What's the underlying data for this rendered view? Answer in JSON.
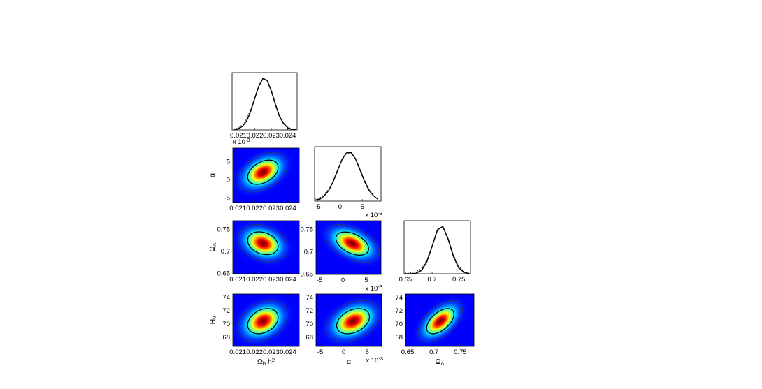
{
  "chart_data": [
    {
      "type": "line",
      "xlim": [
        0.02062,
        0.02457
      ],
      "ylim": [
        0,
        1.1
      ],
      "xticks": [
        0.021,
        0.022,
        0.023,
        0.024
      ],
      "x": [
        0.02075,
        0.021,
        0.02125,
        0.0215,
        0.02175,
        0.022,
        0.02225,
        0.0225,
        0.02275,
        0.023,
        0.02325,
        0.0235,
        0.02375,
        0.024,
        0.02425,
        0.0245
      ],
      "series": [
        {
          "color": "#000000",
          "style": "solid",
          "values": [
            0.01,
            0.02,
            0.07,
            0.17,
            0.36,
            0.61,
            0.85,
            0.99,
            0.95,
            0.75,
            0.49,
            0.26,
            0.12,
            0.04,
            0.01,
            0.0
          ]
        },
        {
          "color": "#000000",
          "style": "dotted",
          "values": [
            0.02,
            0.04,
            0.1,
            0.21,
            0.39,
            0.62,
            0.84,
            0.97,
            0.96,
            0.78,
            0.52,
            0.29,
            0.13,
            0.05,
            0.02,
            0.01
          ]
        }
      ]
    },
    {
      "type": "line",
      "xlim": [
        -5.7,
        9.2
      ],
      "ylim": [
        0,
        1.1
      ],
      "xticks": [
        -5,
        0,
        5
      ],
      "x_exponent_label": {
        "base": "x 10",
        "sup": "-3"
      },
      "x": [
        -5.5,
        -4.5,
        -3.5,
        -2.5,
        -1.5,
        -0.5,
        0.5,
        1.5,
        2.5,
        3.5,
        4.5,
        5.5,
        6.5,
        7.5,
        8.5
      ],
      "series": [
        {
          "color": "#000000",
          "style": "solid",
          "values": [
            0.02,
            0.04,
            0.11,
            0.22,
            0.4,
            0.63,
            0.85,
            0.98,
            0.98,
            0.85,
            0.63,
            0.4,
            0.22,
            0.11,
            0.04
          ]
        },
        {
          "color": "#000000",
          "style": "dotted",
          "values": [
            0.04,
            0.07,
            0.14,
            0.25,
            0.42,
            0.64,
            0.84,
            0.96,
            0.97,
            0.86,
            0.66,
            0.43,
            0.24,
            0.11,
            0.04
          ]
        }
      ]
    },
    {
      "type": "line",
      "xlim": [
        0.6475,
        0.772
      ],
      "ylim": [
        0,
        1.1
      ],
      "xticks": [
        0.65,
        0.7,
        0.75
      ],
      "x": [
        0.65,
        0.66,
        0.67,
        0.68,
        0.69,
        0.7,
        0.71,
        0.72,
        0.73,
        0.74,
        0.75,
        0.76,
        0.77
      ],
      "series": [
        {
          "color": "#000000",
          "style": "solid",
          "values": [
            0.0,
            0.0,
            0.01,
            0.07,
            0.24,
            0.57,
            0.91,
            0.98,
            0.72,
            0.36,
            0.12,
            0.03,
            0.0
          ]
        },
        {
          "color": "#000000",
          "style": "dotted",
          "values": [
            0.01,
            0.02,
            0.04,
            0.11,
            0.28,
            0.58,
            0.89,
            0.98,
            0.74,
            0.39,
            0.15,
            0.05,
            0.01
          ]
        }
      ]
    },
    {
      "type": "contour",
      "xlim": [
        0.0207,
        0.02467
      ],
      "ylim": [
        -6.35,
        8.65
      ],
      "xticks": [
        0.021,
        0.022,
        0.023,
        0.024
      ],
      "yticks": [
        -5,
        0,
        5
      ],
      "ylabel": {
        "base": "α"
      },
      "y_exponent_label": {
        "base": "x 10",
        "sup": "-3"
      },
      "mean": [
        0.0225,
        2
      ],
      "std": [
        0.0006,
        2.2
      ],
      "corr": 0.4,
      "contour_levels": [
        1.52,
        2.49
      ],
      "contour_colors": [
        "#000000",
        "#3a3a3a"
      ]
    },
    {
      "type": "contour",
      "xlim": [
        0.0207,
        0.02467
      ],
      "ylim": [
        0.649,
        0.769
      ],
      "xticks": [
        0.021,
        0.022,
        0.023,
        0.024
      ],
      "yticks": [
        0.65,
        0.7,
        0.75
      ],
      "ylabel": {
        "base": "Ω",
        "sub": "Λ"
      },
      "mean": [
        0.0225,
        0.718
      ],
      "std": [
        0.0006,
        0.017
      ],
      "corr": -0.25,
      "contour_levels": [
        1.52,
        2.49
      ],
      "contour_colors": [
        "#000000",
        "#3a3a3a"
      ]
    },
    {
      "type": "contour",
      "xlim": [
        -5.75,
        8.13
      ],
      "ylim": [
        0.649,
        0.769
      ],
      "xticks": [
        -5,
        0,
        5
      ],
      "yticks": [
        0.65,
        0.7,
        0.75
      ],
      "x_exponent_label": {
        "base": "x 10",
        "sup": "-3"
      },
      "mean": [
        2,
        0.718
      ],
      "std": [
        2.3,
        0.017
      ],
      "corr": -0.45,
      "contour_levels": [
        1.52,
        2.49
      ],
      "contour_colors": [
        "#000000",
        "#3a3a3a"
      ]
    },
    {
      "type": "contour",
      "xlim": [
        0.0207,
        0.02467
      ],
      "ylim": [
        66.6,
        74.5
      ],
      "xticks": [
        0.021,
        0.022,
        0.023,
        0.024
      ],
      "yticks": [
        68,
        70,
        72,
        74
      ],
      "xlabel": {
        "base": "Ω",
        "sub": "b",
        "tail": " h",
        "sup": "2"
      },
      "ylabel": {
        "base": "H",
        "sub": "0"
      },
      "mean": [
        0.0225,
        70.4
      ],
      "std": [
        0.0006,
        1.25
      ],
      "corr": 0.3,
      "contour_levels": [
        1.52,
        2.49
      ],
      "contour_colors": [
        "#000000",
        "#3a3a3a"
      ]
    },
    {
      "type": "contour",
      "xlim": [
        -5.9,
        8.1
      ],
      "ylim": [
        66.6,
        74.5
      ],
      "xticks": [
        -5,
        0,
        5
      ],
      "yticks": [
        68,
        70,
        72,
        74
      ],
      "xlabel": {
        "base": "α"
      },
      "x_exponent_label": {
        "base": "x 10",
        "sup": "-3"
      },
      "mean": [
        2,
        70.4
      ],
      "std": [
        2.3,
        1.25
      ],
      "corr": 0.35,
      "contour_levels": [
        1.52,
        2.49
      ],
      "contour_colors": [
        "#000000",
        "#3a3a3a"
      ]
    },
    {
      "type": "contour",
      "xlim": [
        0.646,
        0.776
      ],
      "ylim": [
        66.6,
        74.5
      ],
      "xticks": [
        0.65,
        0.7,
        0.75
      ],
      "yticks": [
        68,
        70,
        72,
        74
      ],
      "xlabel": {
        "base": "Ω",
        "sub": "Λ"
      },
      "mean": [
        0.712,
        70.4
      ],
      "std": [
        0.017,
        1.25
      ],
      "corr": 0.55,
      "contour_levels": [
        1.52,
        2.49
      ],
      "contour_colors": [
        "#000000",
        "#3a3a3a"
      ]
    }
  ]
}
